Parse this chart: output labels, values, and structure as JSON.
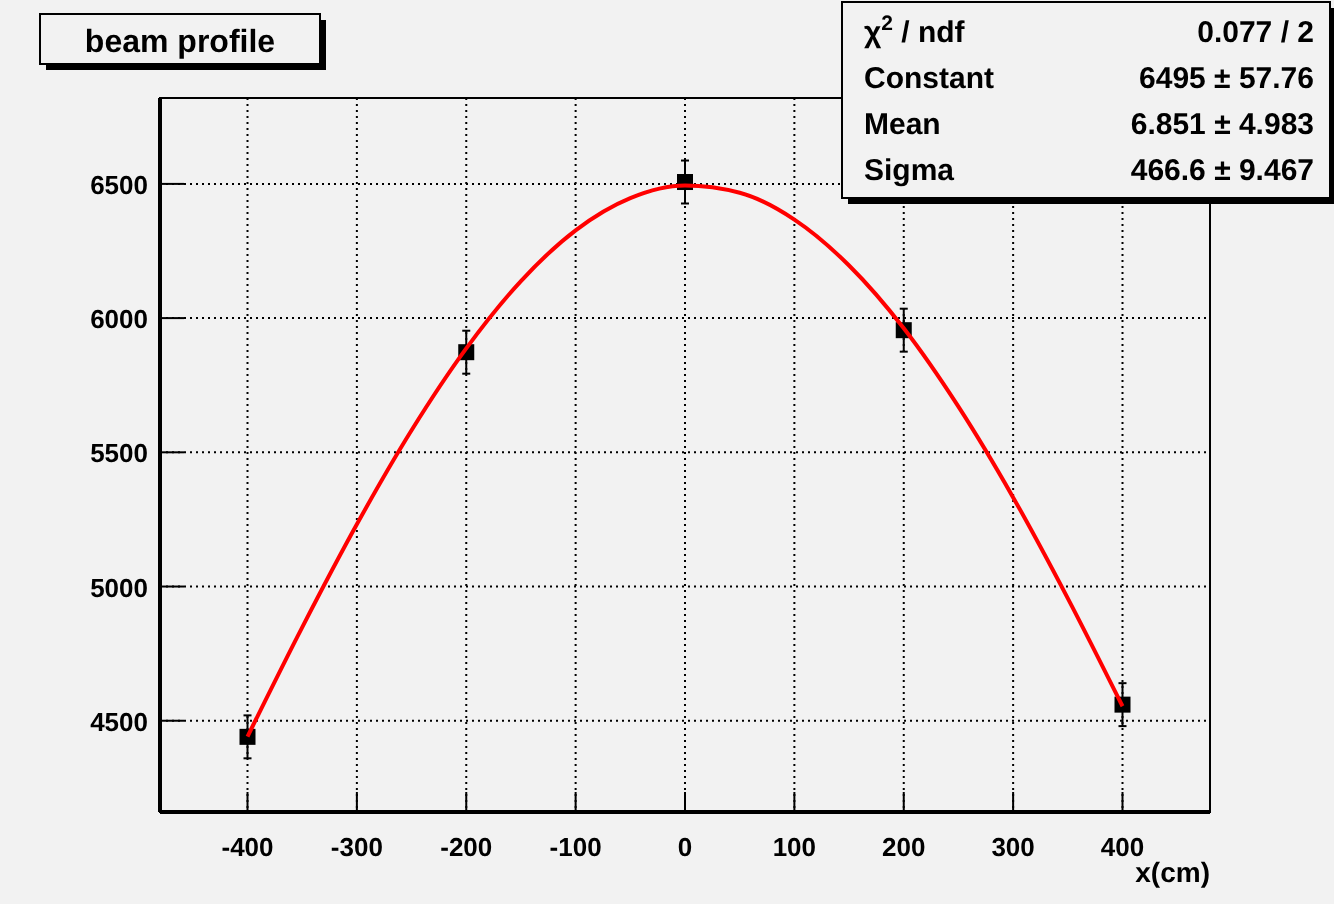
{
  "chart_data": {
    "type": "scatter",
    "title": "beam profile",
    "xlabel": "x(cm)",
    "xlim": [
      -480,
      480
    ],
    "ylim": [
      4160,
      6820
    ],
    "xticks": [
      -400,
      -300,
      -200,
      -100,
      0,
      100,
      200,
      300,
      400
    ],
    "yticks": [
      4500,
      5000,
      5500,
      6000,
      6500
    ],
    "grid": true,
    "marker": "square",
    "annotations": [
      "χ$^{2}$ / ndf",
      "0.077 / 2",
      "Constant",
      "6495 ± 57.76",
      "Mean",
      "6.851 ± 4.983",
      "Sigma",
      "466.6 ± 9.467"
    ],
    "series": [
      {
        "color": "#000000",
        "x": [
          -400,
          -200,
          0,
          200,
          400
        ],
        "values": [
          4440,
          5873,
          6507,
          5955,
          4560
        ],
        "errors": [
          80,
          80,
          80,
          80,
          80
        ]
      },
      {
        "type": "line",
        "color": "#ff0000",
        "marker": "none",
        "line_style": "solid",
        "x": [
          -400,
          -350,
          -300,
          -250,
          -200,
          -150,
          -100,
          -50,
          0,
          50,
          100,
          150,
          200,
          250,
          300,
          350,
          400
        ],
        "values": [
          4441,
          4848,
          5232,
          5582,
          5887,
          6138,
          6327,
          6447,
          6494,
          6467,
          6367,
          6196,
          5962,
          5670,
          5332,
          4956,
          4554
        ]
      }
    ]
  }
}
